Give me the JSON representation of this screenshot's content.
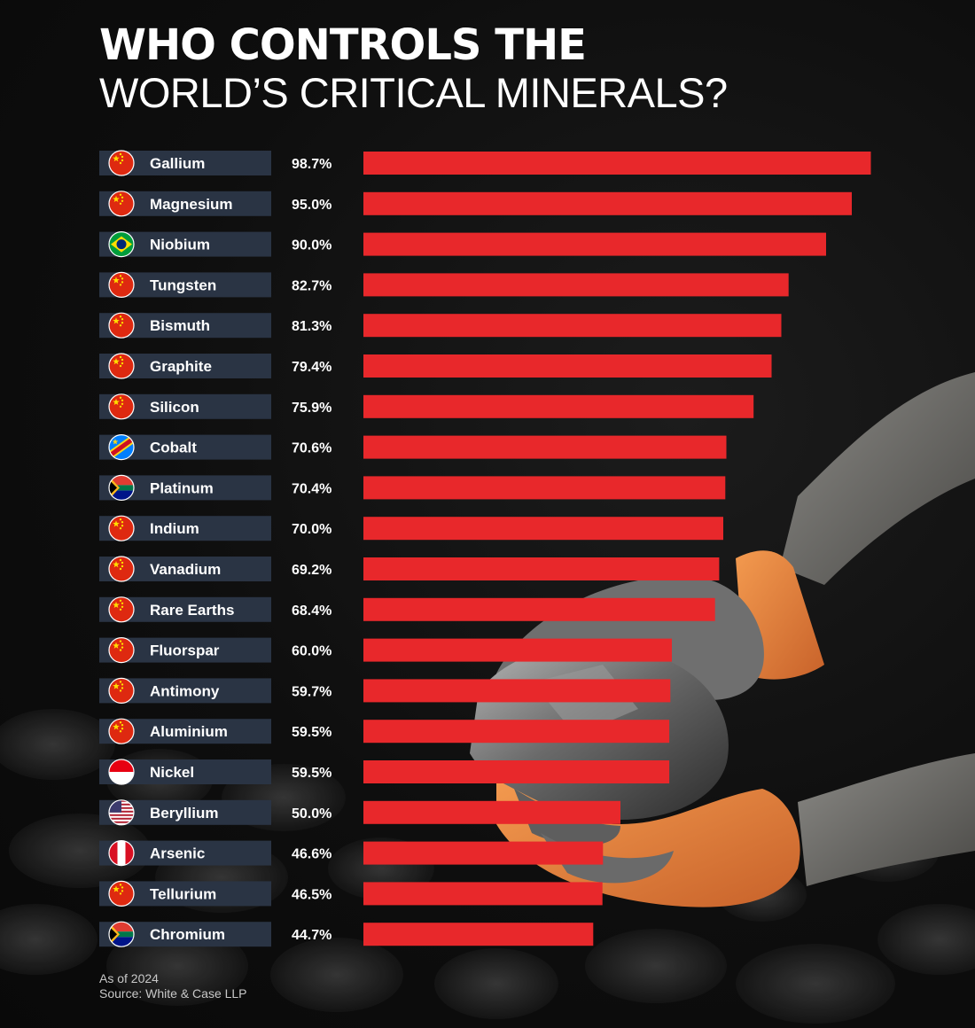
{
  "title_line1": "WHO CONTROLS THE",
  "title_line2": "WORLD’S CRITICAL MINERALS?",
  "footer": {
    "as_of": "As of 2024",
    "source": "Source: White & Case LLP"
  },
  "colors": {
    "bar": "#e8282b",
    "label_box": "#2a3444",
    "text": "#ffffff",
    "background": "#0e0e0e"
  },
  "chart_data": {
    "type": "bar",
    "orientation": "horizontal",
    "categories": [
      "Gallium",
      "Magnesium",
      "Niobium",
      "Tungsten",
      "Bismuth",
      "Graphite",
      "Silicon",
      "Cobalt",
      "Platinum",
      "Indium",
      "Vanadium",
      "Rare Earths",
      "Fluorspar",
      "Antimony",
      "Aluminium",
      "Nickel",
      "Beryllium",
      "Arsenic",
      "Tellurium",
      "Chromium"
    ],
    "values": [
      98.7,
      95.0,
      90.0,
      82.7,
      81.3,
      79.4,
      75.9,
      70.6,
      70.4,
      70.0,
      69.2,
      68.4,
      60.0,
      59.7,
      59.5,
      59.5,
      50.0,
      46.6,
      46.5,
      44.7
    ],
    "value_labels": [
      "98.7%",
      "95.0%",
      "90.0%",
      "82.7%",
      "81.3%",
      "79.4%",
      "75.9%",
      "70.6%",
      "70.4%",
      "70.0%",
      "69.2%",
      "68.4%",
      "60.0%",
      "59.7%",
      "59.5%",
      "59.5%",
      "50.0%",
      "46.6%",
      "46.5%",
      "44.7%"
    ],
    "flags": [
      "china-flag-icon",
      "china-flag-icon",
      "brazil-flag-icon",
      "china-flag-icon",
      "china-flag-icon",
      "china-flag-icon",
      "china-flag-icon",
      "dr-congo-flag-icon",
      "south-africa-flag-icon",
      "china-flag-icon",
      "china-flag-icon",
      "china-flag-icon",
      "china-flag-icon",
      "china-flag-icon",
      "china-flag-icon",
      "indonesia-flag-icon",
      "usa-flag-icon",
      "peru-flag-icon",
      "china-flag-icon",
      "south-africa-flag-icon"
    ],
    "unit": "%",
    "xlim": [
      0,
      100
    ],
    "grid": false,
    "legend": "none"
  }
}
